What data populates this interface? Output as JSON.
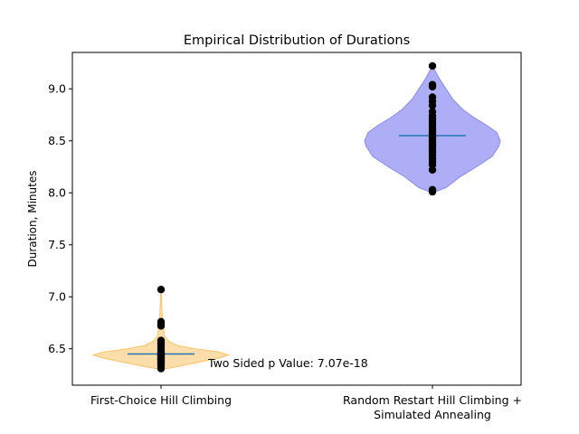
{
  "chart_data": {
    "type": "violin",
    "title": "Empirical Distribution of Durations",
    "xlabel": "",
    "ylabel": "Duration, Minutes",
    "ylim": [
      6.15,
      9.35
    ],
    "yticks": [
      "6.5",
      "7.0",
      "7.5",
      "8.0",
      "8.5",
      "9.0"
    ],
    "categories": [
      [
        "First-Choice Hill Climbing"
      ],
      [
        "Random Restart Hill Climbing +",
        "Simulated Annealing"
      ]
    ],
    "annotation": "Two Sided p Value: 7.07e-18",
    "grid": false,
    "series": [
      {
        "fill": "#fdd9a0",
        "edge": "#fcc36b",
        "median": 6.45,
        "points": [
          6.31,
          6.33,
          6.35,
          6.36,
          6.37,
          6.38,
          6.39,
          6.4,
          6.41,
          6.42,
          6.43,
          6.44,
          6.45,
          6.46,
          6.47,
          6.48,
          6.5,
          6.52,
          6.54,
          6.56,
          6.58,
          6.72,
          6.74,
          6.76,
          7.07
        ],
        "density": [
          [
            6.3,
            0.0
          ],
          [
            6.33,
            0.25
          ],
          [
            6.37,
            0.55
          ],
          [
            6.41,
            0.85
          ],
          [
            6.44,
            1.0
          ],
          [
            6.47,
            0.85
          ],
          [
            6.5,
            0.5
          ],
          [
            6.53,
            0.25
          ],
          [
            6.57,
            0.12
          ],
          [
            6.62,
            0.05
          ],
          [
            6.68,
            0.04
          ],
          [
            6.74,
            0.035
          ],
          [
            6.8,
            0.02
          ],
          [
            6.9,
            0.012
          ],
          [
            7.0,
            0.008
          ],
          [
            7.07,
            0.0
          ]
        ]
      },
      {
        "fill": "#a5a5f6",
        "edge": "#8a8af2",
        "median": 8.55,
        "points": [
          8.01,
          8.03,
          8.22,
          8.27,
          8.3,
          8.33,
          8.36,
          8.39,
          8.41,
          8.44,
          8.46,
          8.48,
          8.5,
          8.52,
          8.54,
          8.56,
          8.58,
          8.6,
          8.62,
          8.65,
          8.68,
          8.71,
          8.74,
          8.78,
          8.84,
          8.88,
          8.92,
          9.02,
          9.04,
          9.22
        ],
        "density": [
          [
            8.0,
            0.0
          ],
          [
            8.05,
            0.2
          ],
          [
            8.15,
            0.4
          ],
          [
            8.25,
            0.65
          ],
          [
            8.35,
            0.88
          ],
          [
            8.45,
            0.98
          ],
          [
            8.5,
            1.0
          ],
          [
            8.58,
            0.95
          ],
          [
            8.65,
            0.8
          ],
          [
            8.72,
            0.62
          ],
          [
            8.8,
            0.45
          ],
          [
            8.9,
            0.3
          ],
          [
            9.0,
            0.2
          ],
          [
            9.1,
            0.1
          ],
          [
            9.22,
            0.0
          ]
        ]
      }
    ]
  }
}
